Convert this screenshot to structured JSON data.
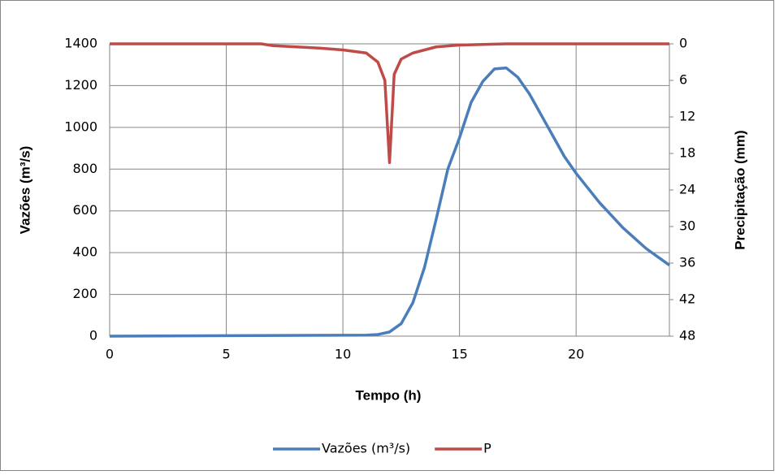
{
  "chart_data": {
    "type": "line",
    "xlabel": "Tempo (h)",
    "ylabel": "Vazões (m³/s)",
    "y2label": "Precipitação (mm)",
    "xlim": [
      0,
      24
    ],
    "xticks": [
      0,
      5,
      10,
      15,
      20
    ],
    "ylim": [
      0,
      1400
    ],
    "yticks": [
      0,
      200,
      400,
      600,
      800,
      1000,
      1200,
      1400
    ],
    "y2lim": [
      48,
      0
    ],
    "y2ticks": [
      0,
      6,
      12,
      18,
      24,
      30,
      36,
      42,
      48
    ],
    "grid": true,
    "legend": "bottom",
    "series": [
      {
        "name": "Vazões (m³/s)",
        "color": "#4a7ebb",
        "x": [
          0,
          11,
          11.5,
          12,
          12.5,
          13,
          13.5,
          14,
          14.5,
          15,
          15.5,
          16,
          16.5,
          17,
          17.5,
          18,
          18.5,
          19,
          19.5,
          20,
          20.5,
          21,
          21.5,
          22,
          22.5,
          23,
          23.5,
          24
        ],
        "values": [
          0,
          5,
          8,
          20,
          60,
          160,
          330,
          560,
          800,
          950,
          1120,
          1220,
          1280,
          1285,
          1240,
          1160,
          1060,
          960,
          860,
          780,
          710,
          640,
          580,
          520,
          470,
          420,
          380,
          340
        ]
      },
      {
        "name": "P",
        "color": "#be4b48",
        "axis": "y2",
        "x": [
          0,
          6.5,
          7,
          9,
          10,
          11,
          11.5,
          11.8,
          12,
          12.2,
          12.5,
          13,
          14,
          15,
          17,
          24
        ],
        "values": [
          0,
          0,
          0.3,
          0.7,
          1,
          1.5,
          3,
          6,
          19.5,
          5,
          2.5,
          1.5,
          0.5,
          0.2,
          0,
          0
        ]
      }
    ]
  }
}
